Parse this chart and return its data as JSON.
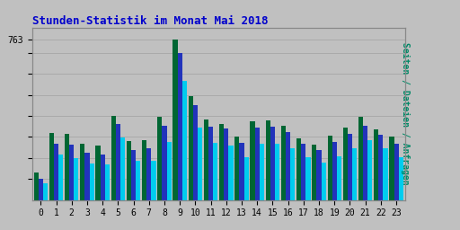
{
  "title": "Stunden-Statistik im Monat Mai 2018",
  "title_color": "#0000CC",
  "background_color": "#C0C0C0",
  "bar_width": 0.3,
  "categories": [
    0,
    1,
    2,
    3,
    4,
    5,
    6,
    7,
    8,
    9,
    10,
    11,
    12,
    13,
    14,
    15,
    16,
    17,
    18,
    19,
    20,
    21,
    22,
    23
  ],
  "seiten": [
    130,
    320,
    315,
    270,
    260,
    400,
    280,
    285,
    395,
    763,
    495,
    385,
    360,
    300,
    375,
    380,
    355,
    295,
    265,
    305,
    345,
    395,
    335,
    300
  ],
  "dateien": [
    100,
    270,
    265,
    225,
    215,
    360,
    240,
    248,
    355,
    700,
    450,
    348,
    340,
    272,
    346,
    350,
    323,
    270,
    238,
    278,
    315,
    353,
    310,
    268
  ],
  "anfragen": [
    82,
    215,
    200,
    175,
    170,
    298,
    188,
    188,
    278,
    568,
    343,
    272,
    258,
    205,
    268,
    268,
    248,
    205,
    178,
    208,
    248,
    285,
    245,
    205
  ],
  "seiten_color": "#006633",
  "dateien_color": "#2233BB",
  "anfragen_color": "#00CCEE",
  "ylim": [
    0,
    820
  ],
  "ytick_positions": [
    100,
    200,
    300,
    400,
    500,
    600,
    700,
    763
  ],
  "ytick_label_val": 763,
  "grid_color": "#AAAAAA",
  "border_color": "#888888",
  "right_label": "Seiten / Dateien / Anfragen",
  "right_label_color": "#008866"
}
